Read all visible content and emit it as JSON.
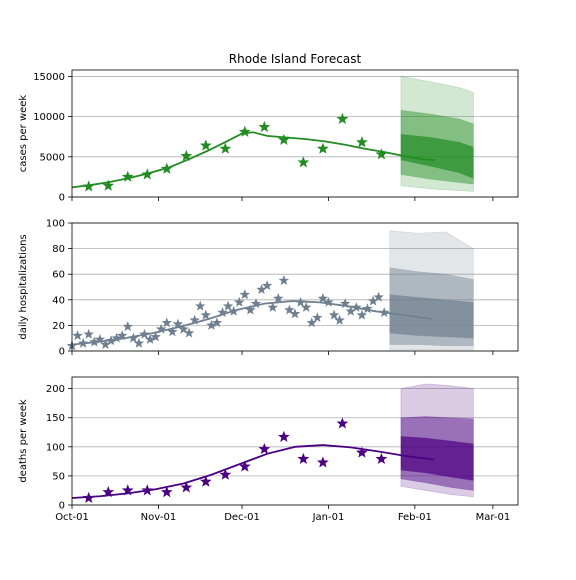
{
  "chart_data": [
    {
      "type": "line",
      "title": "Rhode Island Forecast",
      "ylabel": "cases per week",
      "xlabel": "",
      "xlim": [
        "2020-10-01",
        "2021-03-10"
      ],
      "ylim": [
        0,
        15800
      ],
      "yticks": [
        0,
        5000,
        10000,
        15000
      ],
      "xtick_labels": [
        "Oct-01",
        "Nov-01",
        "Dec-01",
        "Jan-01",
        "Feb-01",
        "Mar-01"
      ],
      "grid": true,
      "color": "#228B22",
      "fit_line": {
        "x": [
          "2020-10-01",
          "2020-10-08",
          "2020-10-15",
          "2020-10-22",
          "2020-10-29",
          "2020-11-05",
          "2020-11-12",
          "2020-11-19",
          "2020-11-26",
          "2020-12-01",
          "2020-12-05",
          "2020-12-10",
          "2020-12-17",
          "2020-12-24",
          "2020-12-31",
          "2021-01-07",
          "2021-01-14",
          "2021-01-21",
          "2021-01-28",
          "2021-02-04",
          "2021-02-08"
        ],
        "y": [
          1200,
          1500,
          1900,
          2400,
          3000,
          3700,
          4700,
          5800,
          7000,
          7900,
          8050,
          7600,
          7400,
          7200,
          6900,
          6500,
          6000,
          5600,
          5100,
          4700,
          4600
        ]
      },
      "observed": {
        "x": [
          "2020-10-07",
          "2020-10-14",
          "2020-10-21",
          "2020-10-28",
          "2020-11-04",
          "2020-11-11",
          "2020-11-18",
          "2020-11-25",
          "2020-12-02",
          "2020-12-09",
          "2020-12-16",
          "2020-12-23",
          "2020-12-30",
          "2021-01-06",
          "2021-01-13",
          "2021-01-20"
        ],
        "y": [
          1300,
          1400,
          2500,
          2800,
          3500,
          5100,
          6400,
          6000,
          8100,
          8700,
          7100,
          4300,
          6000,
          9700,
          6800,
          5300
        ]
      },
      "forecast_bands": {
        "x": [
          "2021-01-27",
          "2021-02-07",
          "2021-02-17",
          "2021-02-22"
        ],
        "intervals": [
          {
            "lower": [
              1400,
              1000,
              800,
              700
            ],
            "upper": [
              15000,
              14300,
              13600,
              13000
            ]
          },
          {
            "lower": [
              2800,
              2200,
              1800,
              1600
            ],
            "upper": [
              10800,
              10300,
              9700,
              9100
            ]
          },
          {
            "lower": [
              4600,
              3800,
              3000,
              2300
            ],
            "upper": [
              7800,
              7400,
              6800,
              6200
            ]
          }
        ]
      }
    },
    {
      "type": "line",
      "title": "",
      "ylabel": "daily hospitalizations",
      "xlabel": "",
      "xlim": [
        "2020-10-01",
        "2021-03-10"
      ],
      "ylim": [
        0,
        100
      ],
      "yticks": [
        0,
        20,
        40,
        60,
        80,
        100
      ],
      "xtick_labels": [
        "Oct-01",
        "Nov-01",
        "Dec-01",
        "Jan-01",
        "Feb-01",
        "Mar-01"
      ],
      "grid": true,
      "color": "#708090",
      "fit_line": {
        "x": [
          "2020-10-01",
          "2020-10-10",
          "2020-10-20",
          "2020-10-30",
          "2020-11-09",
          "2020-11-19",
          "2020-11-29",
          "2020-12-09",
          "2020-12-19",
          "2020-12-29",
          "2021-01-08",
          "2021-01-18",
          "2021-01-28",
          "2021-02-07"
        ],
        "y": [
          5,
          7,
          10,
          14,
          19,
          25,
          32,
          37,
          39,
          38,
          35,
          31,
          28,
          25
        ]
      },
      "observed": {
        "x": [
          "2020-10-01",
          "2020-10-03",
          "2020-10-05",
          "2020-10-07",
          "2020-10-09",
          "2020-10-11",
          "2020-10-13",
          "2020-10-15",
          "2020-10-17",
          "2020-10-19",
          "2020-10-21",
          "2020-10-23",
          "2020-10-25",
          "2020-10-27",
          "2020-10-29",
          "2020-10-31",
          "2020-11-02",
          "2020-11-04",
          "2020-11-06",
          "2020-11-08",
          "2020-11-10",
          "2020-11-12",
          "2020-11-14",
          "2020-11-16",
          "2020-11-18",
          "2020-11-20",
          "2020-11-22",
          "2020-11-24",
          "2020-11-26",
          "2020-11-28",
          "2020-11-30",
          "2020-12-02",
          "2020-12-04",
          "2020-12-06",
          "2020-12-08",
          "2020-12-10",
          "2020-12-12",
          "2020-12-14",
          "2020-12-16",
          "2020-12-18",
          "2020-12-20",
          "2020-12-22",
          "2020-12-24",
          "2020-12-26",
          "2020-12-28",
          "2020-12-30",
          "2021-01-01",
          "2021-01-03",
          "2021-01-05",
          "2021-01-07",
          "2021-01-09",
          "2021-01-11",
          "2021-01-13",
          "2021-01-15",
          "2021-01-17",
          "2021-01-19",
          "2021-01-21"
        ],
        "y": [
          4,
          12,
          6,
          13,
          7,
          9,
          5,
          8,
          10,
          12,
          19,
          10,
          6,
          13,
          9,
          11,
          17,
          22,
          15,
          21,
          17,
          14,
          24,
          35,
          28,
          20,
          22,
          30,
          35,
          31,
          38,
          44,
          32,
          37,
          48,
          51,
          34,
          41,
          55,
          32,
          29,
          38,
          34,
          22,
          26,
          41,
          38,
          28,
          24,
          37,
          31,
          34,
          28,
          33,
          39,
          42,
          30
        ]
      },
      "forecast_bands": {
        "x": [
          "2021-01-23",
          "2021-02-02",
          "2021-02-12",
          "2021-02-22"
        ],
        "intervals": [
          {
            "lower": [
              1,
              1,
              1,
              1
            ],
            "upper": [
              94,
              92,
              93,
              80
            ]
          },
          {
            "lower": [
              5,
              5,
              4,
              4
            ],
            "upper": [
              65,
              62,
              60,
              56
            ]
          },
          {
            "lower": [
              14,
              12,
              11,
              10
            ],
            "upper": [
              44,
              42,
              40,
              38
            ]
          }
        ]
      }
    },
    {
      "type": "line",
      "title": "",
      "ylabel": "deaths per week",
      "xlabel": "",
      "xlim": [
        "2020-10-01",
        "2021-03-10"
      ],
      "ylim": [
        0,
        220
      ],
      "yticks": [
        0,
        50,
        100,
        150,
        200
      ],
      "xtick_labels": [
        "Oct-01",
        "Nov-01",
        "Dec-01",
        "Jan-01",
        "Feb-01",
        "Mar-01"
      ],
      "grid": true,
      "color": "#4B0082",
      "fit_line": {
        "x": [
          "2020-10-01",
          "2020-10-11",
          "2020-10-21",
          "2020-10-31",
          "2020-11-10",
          "2020-11-20",
          "2020-11-30",
          "2020-12-10",
          "2020-12-20",
          "2020-12-30",
          "2021-01-09",
          "2021-01-19",
          "2021-01-29",
          "2021-02-08"
        ],
        "y": [
          12,
          15,
          20,
          27,
          37,
          52,
          70,
          88,
          100,
          103,
          99,
          92,
          84,
          78
        ]
      },
      "observed": {
        "x": [
          "2020-10-07",
          "2020-10-14",
          "2020-10-21",
          "2020-10-28",
          "2020-11-04",
          "2020-11-11",
          "2020-11-18",
          "2020-11-25",
          "2020-12-02",
          "2020-12-09",
          "2020-12-16",
          "2020-12-23",
          "2020-12-30",
          "2021-01-06",
          "2021-01-13",
          "2021-01-20"
        ],
        "y": [
          12,
          22,
          25,
          25,
          22,
          30,
          40,
          52,
          66,
          96,
          117,
          79,
          73,
          140,
          90,
          79
        ]
      },
      "forecast_bands": {
        "x": [
          "2021-01-27",
          "2021-02-05",
          "2021-02-14",
          "2021-02-22"
        ],
        "intervals": [
          {
            "lower": [
              32,
              25,
              18,
              14
            ],
            "upper": [
              200,
              208,
              205,
              200
            ]
          },
          {
            "lower": [
              45,
              38,
              30,
              25
            ],
            "upper": [
              150,
              152,
              150,
              148
            ]
          },
          {
            "lower": [
              60,
              55,
              48,
              42
            ],
            "upper": [
              118,
              115,
              110,
              105
            ]
          }
        ]
      }
    }
  ],
  "style": {
    "band_opacities": [
      0.2,
      0.45,
      0.7
    ]
  }
}
